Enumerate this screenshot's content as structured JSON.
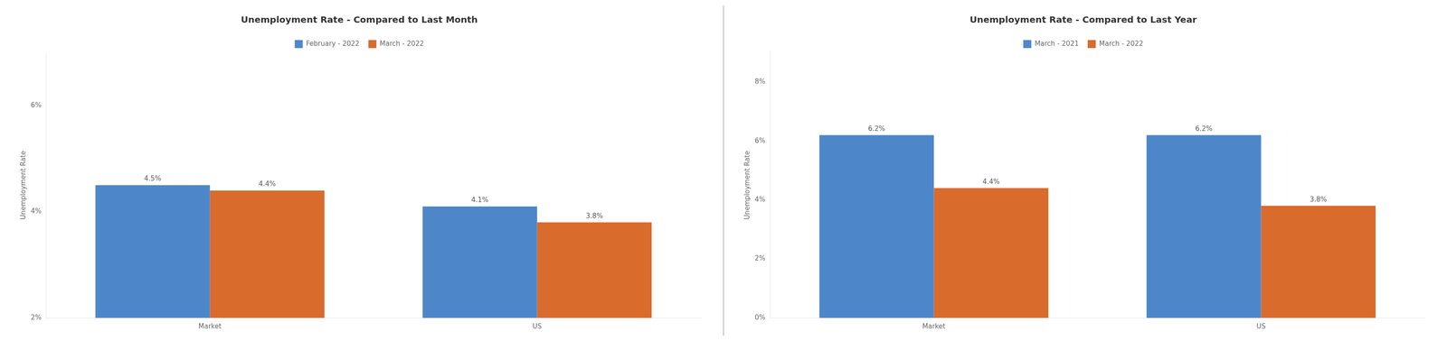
{
  "chart_data": [
    {
      "type": "bar",
      "title": "Unemployment Rate - Compared to Last Month",
      "ylabel": "Unemployment Rate",
      "categories": [
        "Market",
        "US"
      ],
      "series": [
        {
          "name": "February - 2022",
          "color": "#4E87C9",
          "values": [
            4.5,
            4.1
          ],
          "value_labels": [
            "4.5%",
            "4.1%"
          ]
        },
        {
          "name": "March - 2022",
          "color": "#D96B2D",
          "values": [
            4.4,
            3.8
          ],
          "value_labels": [
            "4.4%",
            "3.8%"
          ]
        }
      ],
      "ylim": [
        2,
        7
      ],
      "yticks": [
        {
          "value": 2,
          "label": "2%"
        },
        {
          "value": 4,
          "label": "4%"
        },
        {
          "value": 6,
          "label": "6%"
        }
      ],
      "data_labels": true,
      "grid": false,
      "legend": "top"
    },
    {
      "type": "bar",
      "title": "Unemployment Rate - Compared to Last Year",
      "ylabel": "Unemployment Rate",
      "categories": [
        "Market",
        "US"
      ],
      "series": [
        {
          "name": "March - 2021",
          "color": "#4E87C9",
          "values": [
            6.2,
            6.2
          ],
          "value_labels": [
            "6.2%",
            "6.2%"
          ]
        },
        {
          "name": "March - 2022",
          "color": "#D96B2D",
          "values": [
            4.4,
            3.8
          ],
          "value_labels": [
            "4.4%",
            "3.8%"
          ]
        }
      ],
      "ylim": [
        0,
        9
      ],
      "yticks": [
        {
          "value": 0,
          "label": "0%"
        },
        {
          "value": 2,
          "label": "2%"
        },
        {
          "value": 4,
          "label": "4%"
        },
        {
          "value": 6,
          "label": "6%"
        },
        {
          "value": 8,
          "label": "8%"
        }
      ],
      "data_labels": true,
      "grid": false,
      "legend": "top"
    }
  ]
}
